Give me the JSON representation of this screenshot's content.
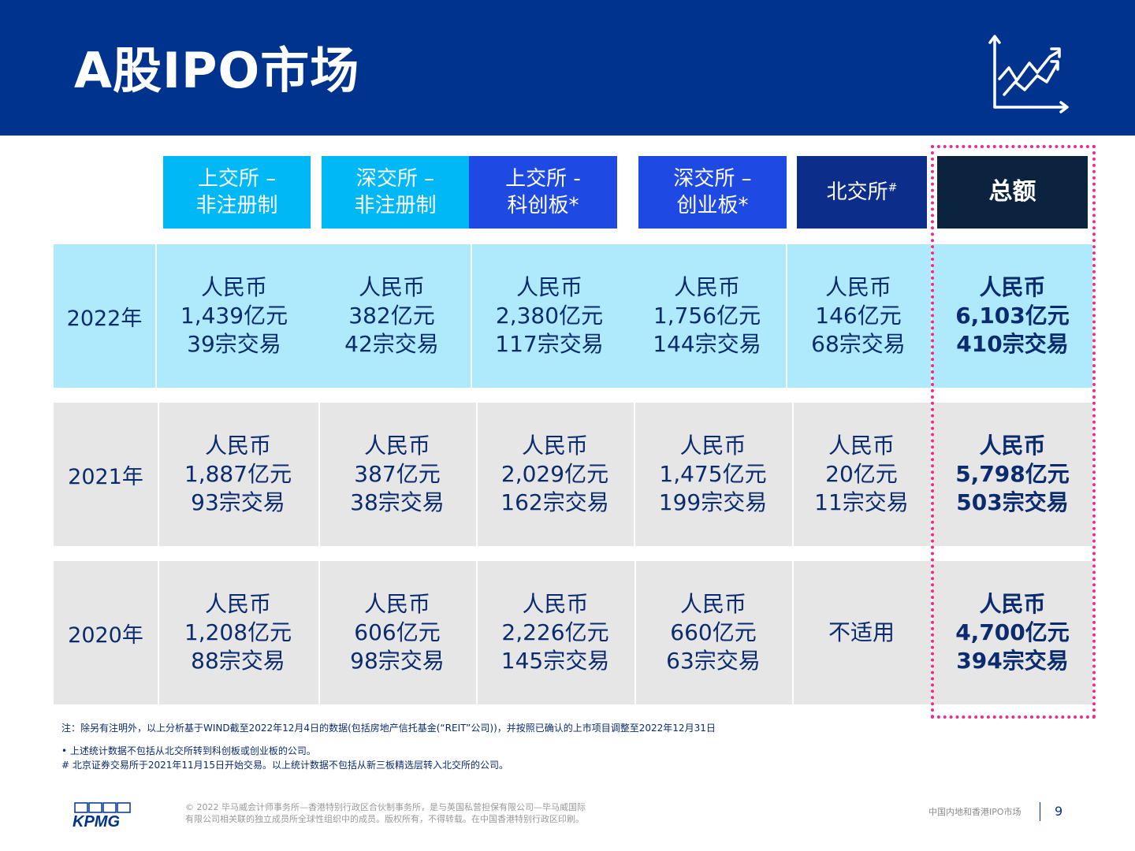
{
  "header": {
    "title": "A股IPO市场",
    "icon": "line-chart-icon",
    "bg_color": "#00338d"
  },
  "columns": [
    {
      "line1": "上交所 –",
      "line2": "非注册制",
      "sup": ""
    },
    {
      "line1": "深交所 –",
      "line2": "非注册制",
      "sup": ""
    },
    {
      "line1": "上交所 -",
      "line2": "科创板*",
      "sup": ""
    },
    {
      "line1": "深交所 –",
      "line2": "创业板*",
      "sup": ""
    },
    {
      "line1": "北交所",
      "line2": "",
      "sup": "#"
    },
    {
      "line1": "总额",
      "line2": "",
      "sup": ""
    }
  ],
  "rows": [
    {
      "year": "2022年",
      "cells": [
        {
          "l1": "人民币",
          "l2": "1,439亿元",
          "l3": "39宗交易"
        },
        {
          "l1": "人民币",
          "l2": "382亿元",
          "l3": "42宗交易"
        },
        {
          "l1": "人民币",
          "l2": "2,380亿元",
          "l3": "117宗交易"
        },
        {
          "l1": "人民币",
          "l2": "1,756亿元",
          "l3": "144宗交易"
        },
        {
          "l1": "人民币",
          "l2": "146亿元",
          "l3": "68宗交易"
        },
        {
          "l1": "人民币",
          "l2": "6,103亿元",
          "l3": "410宗交易"
        }
      ]
    },
    {
      "year": "2021年",
      "cells": [
        {
          "l1": "人民币",
          "l2": "1,887亿元",
          "l3": "93宗交易"
        },
        {
          "l1": "人民币",
          "l2": "387亿元",
          "l3": "38宗交易"
        },
        {
          "l1": "人民币",
          "l2": "2,029亿元",
          "l3": "162宗交易"
        },
        {
          "l1": "人民币",
          "l2": "1,475亿元",
          "l3": "199宗交易"
        },
        {
          "l1": "人民币",
          "l2": "20亿元",
          "l3": "11宗交易"
        },
        {
          "l1": "人民币",
          "l2": "5,798亿元",
          "l3": "503宗交易"
        }
      ]
    },
    {
      "year": "2020年",
      "cells": [
        {
          "l1": "人民币",
          "l2": "1,208亿元",
          "l3": "88宗交易"
        },
        {
          "l1": "人民币",
          "l2": "606亿元",
          "l3": "98宗交易"
        },
        {
          "l1": "人民币",
          "l2": "2,226亿元",
          "l3": "145宗交易"
        },
        {
          "l1": "人民币",
          "l2": "660亿元",
          "l3": "63宗交易"
        },
        {
          "l1": "不适用",
          "l2": "",
          "l3": ""
        },
        {
          "l1": "人民币",
          "l2": "4,700亿元",
          "l3": "394宗交易"
        }
      ]
    }
  ],
  "notes": {
    "main": "注：除另有注明外，以上分析基于WIND截至2022年12月4日的数据(包括房地产信托基金(“REIT”公司))，并按照已确认的上市项目调整至2022年12月31日",
    "bullet1": "•  上述统计数据不包括从北交所转到科创板或创业板的公司。",
    "bullet2": "#  北京证券交易所于2021年11月15日开始交易。以上统计数据不包括从新三板精选层转入北交所的公司。"
  },
  "footer": {
    "logo_text": "KPMG",
    "copyright_line1": "© 2022 毕马威会计师事务所—香港特别行政区合伙制事务所，是与英国私营担保有限公司—毕马威国际",
    "copyright_line2": "有限公司相关联的独立成员所全球性组织中的成员。版权所有，不得转载。在中国香港特别行政区印刷。",
    "doc_title": "中国内地和香港IPO市场",
    "page_number": "9"
  },
  "colors": {
    "header": "#00338d",
    "col_light": "#00b8f5",
    "col_mid": "#1e49e2",
    "col_dark": "#0c2d8a",
    "col_total": "#0c2340",
    "row_2022": "#aeeafb",
    "row_other": "#e6e6e6",
    "highlight_frame": "#ec2c8e"
  }
}
